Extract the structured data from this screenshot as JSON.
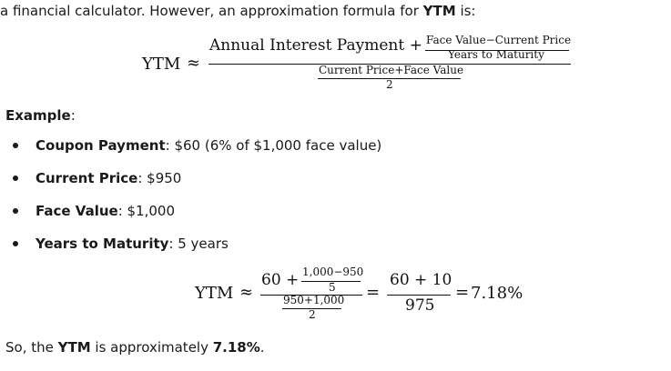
{
  "intro": {
    "text_before": "a financial calculator. However, an approximation formula for ",
    "bold": "YTM",
    "text_after": " is:"
  },
  "formula1": {
    "lhs": "YTM",
    "approx": "≈",
    "numerator_main": "Annual Interest Payment +",
    "inner_num": "Face Value−Current Price",
    "inner_den": "Years to Maturity",
    "den_num": "Current Price+Face Value",
    "den_den": "2"
  },
  "example": {
    "heading": "Example",
    "colon": ":"
  },
  "bullets": [
    {
      "label": "Coupon Payment",
      "value": ": $60 (6% of $1,000 face value)"
    },
    {
      "label": "Current Price",
      "value": ": $950"
    },
    {
      "label": "Face Value",
      "value": ": $1,000"
    },
    {
      "label": "Years to Maturity",
      "value": ": 5 years"
    }
  ],
  "formula2": {
    "lhs": "YTM",
    "approx": "≈",
    "num_main": "60 +",
    "inner_num": "1,000−950",
    "inner_den": "5",
    "den_num": "950+1,000",
    "den_den": "2",
    "eq1": "=",
    "mid_num": "60 + 10",
    "mid_den": "975",
    "eq2": "=",
    "result": "7.18%"
  },
  "conclusion": {
    "before": "So, the ",
    "bold1": "YTM",
    "middle": " is approximately ",
    "bold2": "7.18%",
    "end": "."
  }
}
